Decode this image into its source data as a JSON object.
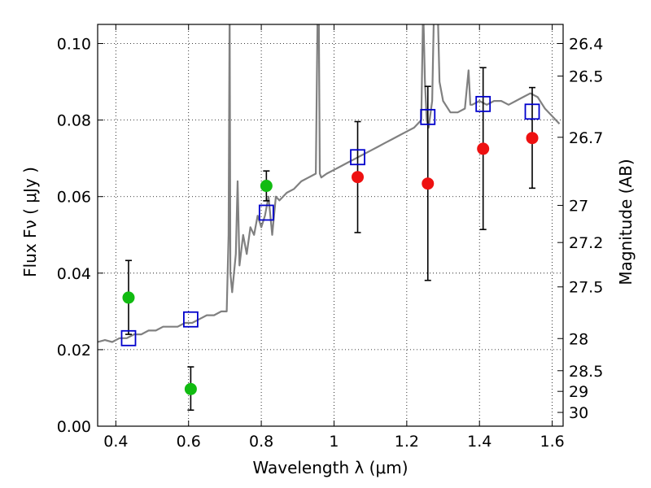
{
  "chart_data": {
    "type": "scatter",
    "title": "",
    "xlabel": "Wavelength  λ (μm)",
    "ylabel_left": "Flux  Fν  ( μJy )",
    "ylabel_right": "Magnitude (AB)",
    "xlim": [
      0.35,
      1.63
    ],
    "ylim": [
      0.0,
      0.105
    ],
    "grid": true,
    "x_ticks": [
      0.4,
      0.6,
      0.8,
      1.0,
      1.2,
      1.4,
      1.6
    ],
    "x_tick_labels": [
      "0.4",
      "0.6",
      "0.8",
      "1",
      "1.2",
      "1.4",
      "1.6"
    ],
    "y_ticks": [
      0.0,
      0.02,
      0.04,
      0.06,
      0.08,
      0.1
    ],
    "y_tick_labels": [
      "0.00",
      "0.02",
      "0.04",
      "0.06",
      "0.08",
      "0.10"
    ],
    "right_ticks": [
      {
        "label": "26.4",
        "flux": 0.1
      },
      {
        "label": "26.5",
        "flux": 0.0915
      },
      {
        "label": "26.7",
        "flux": 0.0755
      },
      {
        "label": "27",
        "flux": 0.0577
      },
      {
        "label": "27.2",
        "flux": 0.048
      },
      {
        "label": "27.5",
        "flux": 0.0364
      },
      {
        "label": "28",
        "flux": 0.0229
      },
      {
        "label": "28.5",
        "flux": 0.0145
      },
      {
        "label": "29",
        "flux": 0.0091
      },
      {
        "label": "30",
        "flux": 0.0036
      }
    ],
    "colors": {
      "spectrum": "#808080",
      "model_squares": "#0000cc",
      "detections_green": "#11bb11",
      "detections_red": "#ee1111",
      "errorbar": "#000000"
    },
    "series": [
      {
        "type": "line",
        "color": "#808080",
        "x": [
          0.35,
          0.37,
          0.39,
          0.41,
          0.43,
          0.45,
          0.47,
          0.49,
          0.51,
          0.53,
          0.55,
          0.57,
          0.59,
          0.61,
          0.63,
          0.65,
          0.67,
          0.69,
          0.705,
          0.71,
          0.713,
          0.715,
          0.72,
          0.73,
          0.735,
          0.74,
          0.75,
          0.76,
          0.77,
          0.78,
          0.79,
          0.8,
          0.81,
          0.82,
          0.83,
          0.84,
          0.85,
          0.87,
          0.89,
          0.91,
          0.93,
          0.95,
          0.955,
          0.958,
          0.961,
          0.965,
          0.98,
          1.0,
          1.02,
          1.04,
          1.06,
          1.08,
          1.1,
          1.12,
          1.14,
          1.16,
          1.18,
          1.2,
          1.22,
          1.24,
          1.245,
          1.25,
          1.255,
          1.26,
          1.27,
          1.275,
          1.28,
          1.285,
          1.29,
          1.3,
          1.32,
          1.34,
          1.36,
          1.37,
          1.375,
          1.38,
          1.4,
          1.42,
          1.44,
          1.46,
          1.48,
          1.5,
          1.52,
          1.54,
          1.56,
          1.58,
          1.6,
          1.62
        ],
        "y": [
          0.022,
          0.0225,
          0.022,
          0.023,
          0.023,
          0.024,
          0.024,
          0.025,
          0.025,
          0.026,
          0.026,
          0.026,
          0.027,
          0.027,
          0.028,
          0.029,
          0.029,
          0.03,
          0.03,
          0.05,
          0.11,
          0.04,
          0.035,
          0.045,
          0.064,
          0.042,
          0.05,
          0.045,
          0.052,
          0.05,
          0.055,
          0.052,
          0.055,
          0.06,
          0.05,
          0.06,
          0.059,
          0.061,
          0.062,
          0.064,
          0.065,
          0.066,
          0.11,
          0.11,
          0.066,
          0.065,
          0.066,
          0.067,
          0.068,
          0.069,
          0.07,
          0.071,
          0.072,
          0.073,
          0.074,
          0.075,
          0.076,
          0.077,
          0.078,
          0.08,
          0.11,
          0.09,
          0.08,
          0.078,
          0.085,
          0.11,
          0.11,
          0.11,
          0.09,
          0.085,
          0.082,
          0.082,
          0.083,
          0.093,
          0.084,
          0.084,
          0.085,
          0.084,
          0.085,
          0.085,
          0.084,
          0.085,
          0.086,
          0.087,
          0.086,
          0.083,
          0.081,
          0.079
        ]
      },
      {
        "type": "squares",
        "color": "#0000cc",
        "x": [
          0.435,
          0.606,
          0.814,
          1.065,
          1.258,
          1.41,
          1.545
        ],
        "y": [
          0.023,
          0.0279,
          0.0558,
          0.0703,
          0.0808,
          0.0842,
          0.0822
        ]
      },
      {
        "type": "points",
        "color": "#11bb11",
        "x": [
          0.435,
          0.606,
          0.814
        ],
        "y": [
          0.0336,
          0.0097,
          0.0628
        ],
        "err_low": [
          0.024,
          0.0042,
          0.0589
        ],
        "err_high": [
          0.0433,
          0.0155,
          0.0667
        ]
      },
      {
        "type": "points",
        "color": "#ee1111",
        "x": [
          1.065,
          1.258,
          1.41,
          1.545
        ],
        "y": [
          0.0651,
          0.0634,
          0.0725,
          0.0753
        ],
        "err_low": [
          0.0506,
          0.0381,
          0.0514,
          0.0622
        ],
        "err_high": [
          0.0796,
          0.0888,
          0.0937,
          0.0885
        ]
      }
    ]
  }
}
